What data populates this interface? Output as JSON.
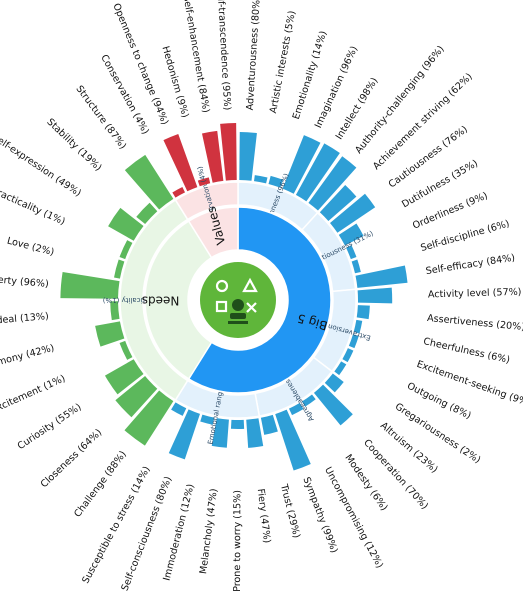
{
  "chart_data": {
    "type": "sunburst",
    "colors": {
      "big5": "#2d9cdb",
      "needs": "#5cb85c",
      "values": "#d0333f",
      "big5_facet": "#2e9fd6",
      "big5_inner": "#2196f3",
      "big5_mid": "#e3f1fc",
      "needs_mid": "#e8f6e5",
      "values_mid": "#fbe3e4",
      "center_icon": "#5fb63a"
    },
    "categories": [
      {
        "name": "Big 5",
        "percent": "(98%)",
        "sub_label": "Openness\n(96%)",
        "groups": [
          {
            "name": "Openness",
            "percent": "(96%)",
            "traits": [
              {
                "label": "Adventurousness (80%)",
                "value": 80
              },
              {
                "label": "Artistic interests (5%)",
                "value": 5
              },
              {
                "label": "Emotionality (14%)",
                "value": 14
              },
              {
                "label": "Imagination (96%)",
                "value": 96
              },
              {
                "label": "Intellect (98%)",
                "value": 98
              },
              {
                "label": "Authority-challenging (96%)",
                "value": 96
              }
            ]
          },
          {
            "name": "Conscientiousness",
            "percent": "(31%)",
            "traits": [
              {
                "label": "Achievement striving (62%)",
                "value": 62
              },
              {
                "label": "Cautiousness (76%)",
                "value": 76
              },
              {
                "label": "Dutifulness (35%)",
                "value": 35
              },
              {
                "label": "Orderliness (9%)",
                "value": 9
              },
              {
                "label": "Self-discipline (6%)",
                "value": 6
              },
              {
                "label": "Self-efficacy (84%)",
                "value": 84
              }
            ]
          },
          {
            "name": "Extraversion",
            "percent": "(8%)",
            "traits": [
              {
                "label": "Activity level (57%)",
                "value": 57
              },
              {
                "label": "Assertiveness (20%)",
                "value": 20
              },
              {
                "label": "Cheerfulness (6%)",
                "value": 6
              },
              {
                "label": "Excitement-seeking (9%)",
                "value": 9
              },
              {
                "label": "Outgoing (8%)",
                "value": 8
              },
              {
                "label": "Gregariousness (2%)",
                "value": 2
              }
            ]
          },
          {
            "name": "Agreeableness",
            "percent": "(9%)",
            "traits": [
              {
                "label": "Altruism (23%)",
                "value": 23
              },
              {
                "label": "Cooperation (70%)",
                "value": 70
              },
              {
                "label": "Modesty (6%)",
                "value": 6
              },
              {
                "label": "Uncompromising (12%)",
                "value": 12
              },
              {
                "label": "Sympathy (99%)",
                "value": 99
              },
              {
                "label": "Trust (29%)",
                "value": 29
              }
            ]
          },
          {
            "name": "Emotional range",
            "percent": "(49%)",
            "traits": [
              {
                "label": "Fiery (47%)",
                "value": 47
              },
              {
                "label": "Prone to worry (15%)",
                "value": 15
              },
              {
                "label": "Melancholy (47%)",
                "value": 47
              },
              {
                "label": "Immoderation (12%)",
                "value": 12
              },
              {
                "label": "Self-consciousness (80%)",
                "value": 80
              },
              {
                "label": "Susceptible to stress (14%)",
                "value": 14
              }
            ]
          }
        ]
      },
      {
        "name": "Needs",
        "percent": "",
        "groups": [
          {
            "name": "Practicality",
            "percent": "(1%)",
            "traits": [
              {
                "label": "Challenge (88%)",
                "value": 88
              },
              {
                "label": "Closeness (64%)",
                "value": 64
              },
              {
                "label": "Curiosity (55%)",
                "value": 55
              },
              {
                "label": "Excitement (1%)",
                "value": 1
              },
              {
                "label": "Harmony (42%)",
                "value": 42
              },
              {
                "label": "Ideal (13%)",
                "value": 13
              },
              {
                "label": "Liberty (96%)",
                "value": 96
              },
              {
                "label": "Love (2%)",
                "value": 2
              },
              {
                "label": "Practicality (1%)",
                "value": 1
              },
              {
                "label": "Self-expression (49%)",
                "value": 49
              },
              {
                "label": "Stability (19%)",
                "value": 19
              },
              {
                "label": "Structure (87%)",
                "value": 87
              }
            ]
          }
        ]
      },
      {
        "name": "Values",
        "percent": "",
        "groups": [
          {
            "name": "Conservation",
            "percent": "(4%)",
            "traits": [
              {
                "label": "Conservation (4%)",
                "value": 4
              },
              {
                "label": "Openness to change (94%)",
                "value": 94
              },
              {
                "label": "Hedonism (9%)",
                "value": 9
              },
              {
                "label": "Self-enhancement (84%)",
                "value": 84
              },
              {
                "label": "Self-transcendence (95%)",
                "value": 95
              }
            ]
          }
        ]
      }
    ]
  }
}
